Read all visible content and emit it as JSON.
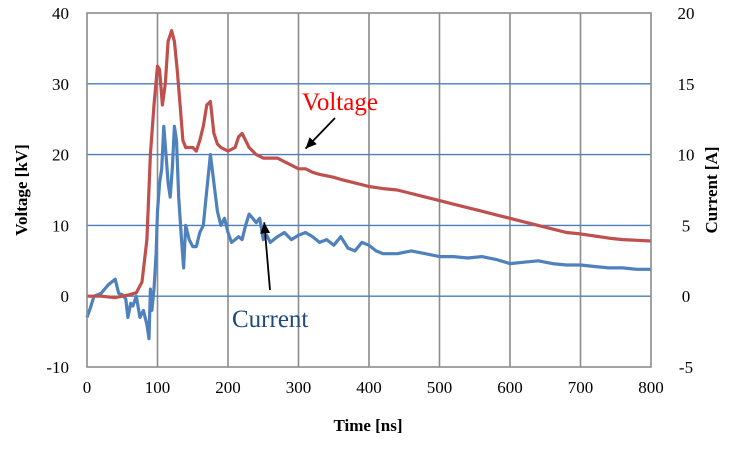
{
  "chart_data": {
    "type": "line",
    "title": "",
    "xlabel": "Time [ns]",
    "ylabel_left": "Voltage [kV]",
    "ylabel_right": "Current  [A]",
    "xlim": [
      0,
      800
    ],
    "ylim_left": [
      -10,
      40
    ],
    "ylim_right": [
      -5,
      20
    ],
    "x_ticks": [
      0,
      100,
      200,
      300,
      400,
      500,
      600,
      700,
      800
    ],
    "y_left_ticks": [
      -10,
      0,
      10,
      20,
      30,
      40
    ],
    "y_right_ticks": [
      -5,
      0,
      5,
      10,
      15,
      20
    ],
    "grid": {
      "vertical": true,
      "horizontal": true
    },
    "colors": {
      "voltage": "#c0504d",
      "current": "#4f81bd",
      "grid_vertical": "#8c8c8c",
      "grid_horizontal": "#4a7ebb"
    },
    "series": [
      {
        "name": "Voltage",
        "axis": "left",
        "points": [
          [
            0,
            0
          ],
          [
            20,
            0
          ],
          [
            40,
            -0.2
          ],
          [
            60,
            0.2
          ],
          [
            70,
            0.5
          ],
          [
            78,
            2
          ],
          [
            85,
            8
          ],
          [
            90,
            20
          ],
          [
            95,
            27
          ],
          [
            100,
            32.5
          ],
          [
            103,
            32
          ],
          [
            107,
            27
          ],
          [
            111,
            30
          ],
          [
            115,
            36
          ],
          [
            120,
            37.5
          ],
          [
            124,
            36
          ],
          [
            128,
            32
          ],
          [
            132,
            27
          ],
          [
            136,
            22
          ],
          [
            140,
            21
          ],
          [
            145,
            21
          ],
          [
            150,
            21
          ],
          [
            155,
            20.5
          ],
          [
            160,
            22
          ],
          [
            165,
            24
          ],
          [
            170,
            27
          ],
          [
            175,
            27.5
          ],
          [
            180,
            23
          ],
          [
            185,
            21.5
          ],
          [
            190,
            21
          ],
          [
            200,
            20.5
          ],
          [
            210,
            21
          ],
          [
            215,
            22.5
          ],
          [
            220,
            23
          ],
          [
            225,
            22
          ],
          [
            230,
            21
          ],
          [
            240,
            20
          ],
          [
            250,
            19.5
          ],
          [
            260,
            19.5
          ],
          [
            270,
            19.5
          ],
          [
            280,
            19
          ],
          [
            290,
            18.5
          ],
          [
            300,
            18
          ],
          [
            310,
            18
          ],
          [
            320,
            17.5
          ],
          [
            330,
            17.2
          ],
          [
            340,
            17
          ],
          [
            350,
            16.8
          ],
          [
            360,
            16.5
          ],
          [
            380,
            16
          ],
          [
            400,
            15.5
          ],
          [
            420,
            15.2
          ],
          [
            440,
            15
          ],
          [
            460,
            14.5
          ],
          [
            480,
            14
          ],
          [
            500,
            13.5
          ],
          [
            520,
            13
          ],
          [
            540,
            12.5
          ],
          [
            560,
            12
          ],
          [
            580,
            11.5
          ],
          [
            600,
            11
          ],
          [
            620,
            10.5
          ],
          [
            640,
            10
          ],
          [
            660,
            9.5
          ],
          [
            680,
            9
          ],
          [
            700,
            8.8
          ],
          [
            720,
            8.5
          ],
          [
            740,
            8.2
          ],
          [
            760,
            8
          ],
          [
            780,
            7.9
          ],
          [
            800,
            7.8
          ]
        ]
      },
      {
        "name": "Current",
        "axis": "right",
        "points": [
          [
            0,
            -1.5
          ],
          [
            5,
            -0.8
          ],
          [
            10,
            0
          ],
          [
            20,
            0.2
          ],
          [
            30,
            0.8
          ],
          [
            35,
            1
          ],
          [
            40,
            1.2
          ],
          [
            45,
            0.2
          ],
          [
            50,
            0.1
          ],
          [
            55,
            -0.2
          ],
          [
            58,
            -1.5
          ],
          [
            62,
            -0.5
          ],
          [
            65,
            -0.7
          ],
          [
            70,
            0
          ],
          [
            75,
            -1.5
          ],
          [
            80,
            -1
          ],
          [
            85,
            -2
          ],
          [
            88,
            -3
          ],
          [
            90,
            0.5
          ],
          [
            92,
            -1
          ],
          [
            95,
            0.5
          ],
          [
            98,
            3
          ],
          [
            100,
            6
          ],
          [
            103,
            8
          ],
          [
            106,
            9
          ],
          [
            109,
            12
          ],
          [
            112,
            10
          ],
          [
            115,
            8
          ],
          [
            118,
            7
          ],
          [
            121,
            9
          ],
          [
            124,
            12
          ],
          [
            127,
            11
          ],
          [
            130,
            7
          ],
          [
            134,
            4
          ],
          [
            137,
            2
          ],
          [
            140,
            5
          ],
          [
            145,
            4
          ],
          [
            150,
            3.5
          ],
          [
            155,
            3.5
          ],
          [
            160,
            4.5
          ],
          [
            165,
            5
          ],
          [
            170,
            7.5
          ],
          [
            175,
            10
          ],
          [
            180,
            8
          ],
          [
            185,
            6
          ],
          [
            190,
            5
          ],
          [
            195,
            5.5
          ],
          [
            200,
            4.5
          ],
          [
            205,
            3.8
          ],
          [
            210,
            4
          ],
          [
            215,
            4.2
          ],
          [
            220,
            4
          ],
          [
            225,
            5
          ],
          [
            230,
            5.8
          ],
          [
            235,
            5.5
          ],
          [
            240,
            5.2
          ],
          [
            245,
            5.5
          ],
          [
            250,
            4
          ],
          [
            255,
            4.3
          ],
          [
            260,
            3.8
          ],
          [
            270,
            4.2
          ],
          [
            280,
            4.5
          ],
          [
            290,
            4
          ],
          [
            300,
            4.3
          ],
          [
            310,
            4.5
          ],
          [
            320,
            4.2
          ],
          [
            330,
            3.8
          ],
          [
            340,
            4
          ],
          [
            350,
            3.6
          ],
          [
            360,
            4.2
          ],
          [
            370,
            3.4
          ],
          [
            380,
            3.2
          ],
          [
            390,
            3.8
          ],
          [
            400,
            3.6
          ],
          [
            410,
            3.2
          ],
          [
            420,
            3
          ],
          [
            440,
            3
          ],
          [
            460,
            3.2
          ],
          [
            480,
            3
          ],
          [
            500,
            2.8
          ],
          [
            520,
            2.8
          ],
          [
            540,
            2.7
          ],
          [
            560,
            2.8
          ],
          [
            580,
            2.6
          ],
          [
            600,
            2.3
          ],
          [
            620,
            2.4
          ],
          [
            640,
            2.5
          ],
          [
            660,
            2.3
          ],
          [
            680,
            2.2
          ],
          [
            700,
            2.2
          ],
          [
            720,
            2.1
          ],
          [
            740,
            2
          ],
          [
            760,
            2
          ],
          [
            780,
            1.9
          ],
          [
            800,
            1.9
          ]
        ]
      }
    ],
    "annotations": [
      {
        "text": "Voltage",
        "color": "#ff0000",
        "points_to": [
          310,
          20
        ]
      },
      {
        "text": "Current",
        "color": "#1f497d",
        "points_to": [
          240,
          5.5
        ]
      }
    ]
  }
}
